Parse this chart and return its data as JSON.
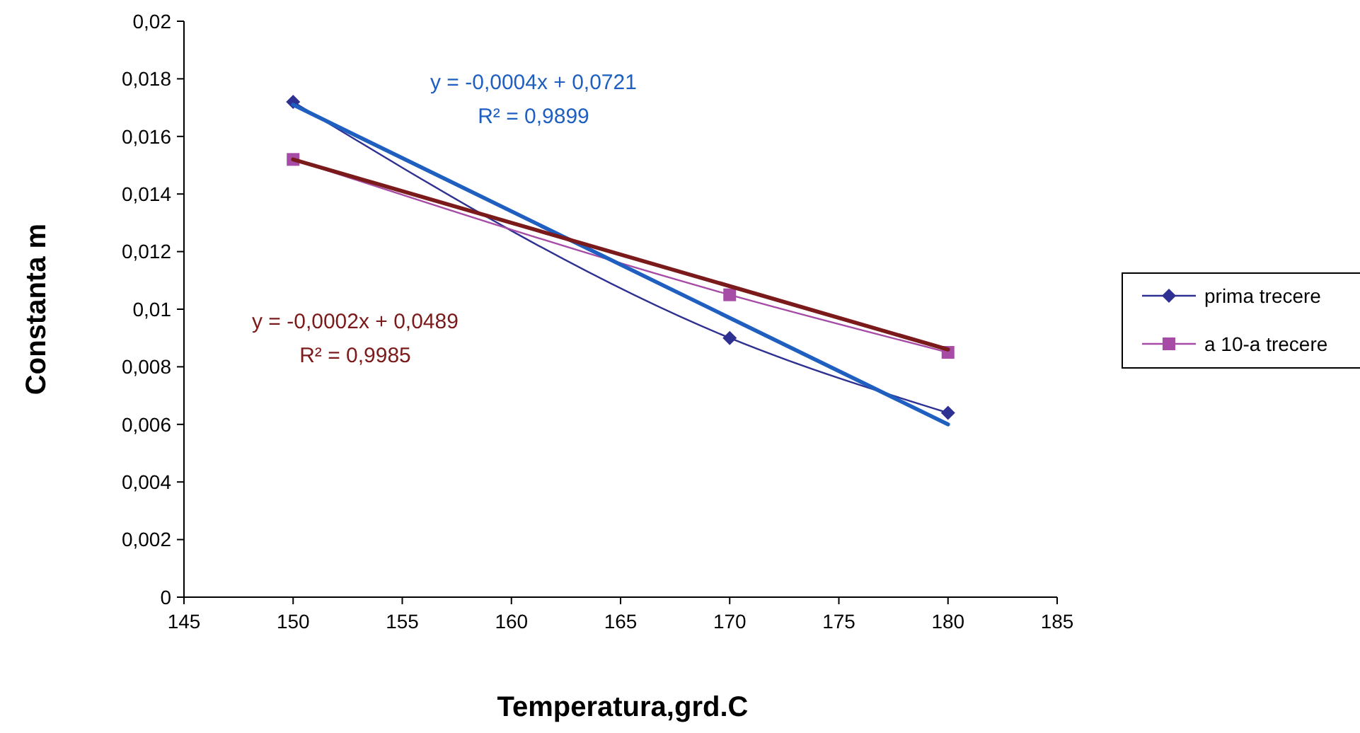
{
  "chart_data": {
    "type": "line",
    "xlabel": "Temperatura,grd.C",
    "ylabel": "Constanta m",
    "xlim": [
      145,
      185
    ],
    "xticks": [
      145,
      150,
      155,
      160,
      165,
      170,
      175,
      180,
      185
    ],
    "ylim": [
      0,
      0.02
    ],
    "yticks": [
      {
        "value": 0,
        "label": "0"
      },
      {
        "value": 0.002,
        "label": "0,002"
      },
      {
        "value": 0.004,
        "label": "0,004"
      },
      {
        "value": 0.006,
        "label": "0,006"
      },
      {
        "value": 0.008,
        "label": "0,008"
      },
      {
        "value": 0.01,
        "label": "0,01"
      },
      {
        "value": 0.012,
        "label": "0,012"
      },
      {
        "value": 0.014,
        "label": "0,014"
      },
      {
        "value": 0.016,
        "label": "0,016"
      },
      {
        "value": 0.018,
        "label": "0,018"
      },
      {
        "value": 0.02,
        "label": "0,02"
      }
    ],
    "grid": false,
    "legend": "right",
    "series": [
      {
        "name": "prima trecere",
        "color": "#2e3192",
        "x": [
          150,
          170,
          180
        ],
        "values": [
          0.0172,
          0.009,
          0.0064
        ],
        "marker": "diamond"
      },
      {
        "name": "a 10-a trecere",
        "color": "#a64ca6",
        "x": [
          150,
          170,
          180
        ],
        "values": [
          0.0152,
          0.0105,
          0.0085
        ],
        "marker": "square"
      },
      {
        "type": "line",
        "color": "#1f5fbf",
        "x": [
          150,
          180
        ],
        "values": [
          0.0171,
          0.006
        ],
        "marker": "none"
      },
      {
        "type": "line",
        "color": "#7b1a1a",
        "x": [
          150,
          180
        ],
        "values": [
          0.0152,
          0.0086
        ],
        "marker": "none"
      }
    ],
    "annotations": [
      "y = -0,0004x + 0,0721",
      "R² = 0,9899",
      "y = -0,0002x + 0,0489",
      "R² = 0,9985"
    ]
  }
}
